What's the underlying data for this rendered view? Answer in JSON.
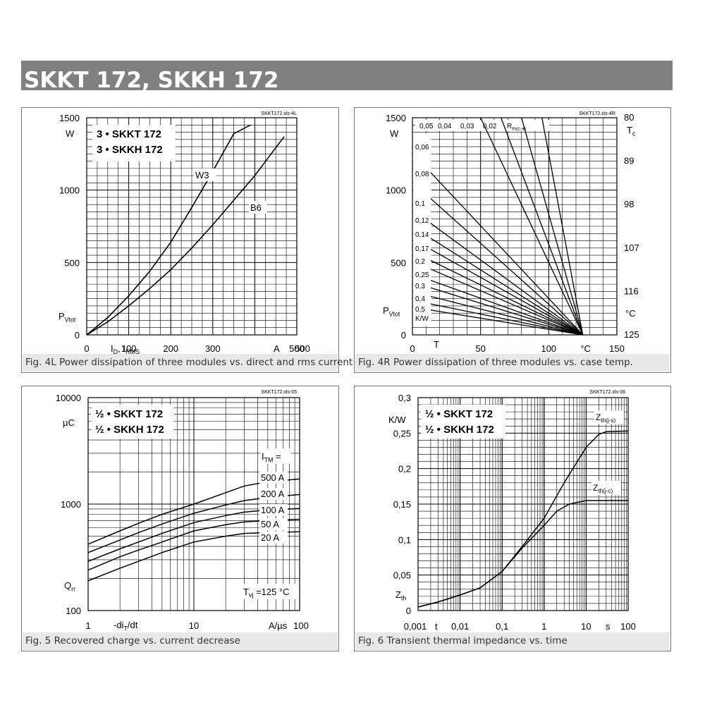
{
  "page_title": "SKKT 172, SKKH 172",
  "chart_data": [
    {
      "id": "fig4L",
      "type": "line",
      "file_ref": "SKKT172.xls-4L",
      "caption": "Fig. 4L Power dissipation of three modules vs. direct and rms current",
      "legend": [
        "3 • SKKT 172",
        "3 • SKKH 172"
      ],
      "xlabel": "I_D, I_RMS",
      "xunit": "A",
      "ylabel": "P_Vtot",
      "yunit": "W",
      "xlim": [
        0,
        500
      ],
      "ylim": [
        0,
        1500
      ],
      "xticks": [
        "0",
        "100",
        "200",
        "300",
        "400",
        "500"
      ],
      "yticks": [
        "0",
        "500",
        "1000",
        "1500"
      ],
      "series": [
        {
          "name": "W3",
          "x": [
            0,
            50,
            100,
            150,
            200,
            250,
            300,
            350,
            390
          ],
          "y": [
            0,
            120,
            270,
            440,
            640,
            880,
            1130,
            1390,
            1450
          ]
        },
        {
          "name": "B6",
          "x": [
            0,
            50,
            100,
            150,
            200,
            250,
            300,
            350,
            400,
            470
          ],
          "y": [
            0,
            90,
            200,
            320,
            450,
            600,
            760,
            930,
            1100,
            1370
          ]
        }
      ]
    },
    {
      "id": "fig4R",
      "type": "line",
      "file_ref": "SKKT172.xls-4R",
      "caption": "Fig. 4R Power dissipation of three modules vs. case temp.",
      "xlabel": "T",
      "xunit": "°C",
      "ylabel": "P_Vtot",
      "yunit": "W",
      "rth_label": "R_th(c-a)",
      "rth_unit": "K/W",
      "xlim": [
        0,
        150
      ],
      "ylim": [
        0,
        1500
      ],
      "xticks": [
        "0",
        "50",
        "100",
        "150"
      ],
      "yticks": [
        "0",
        "500",
        "1000",
        "1500"
      ],
      "right_axis_label": "T_c",
      "right_axis_unit": "°C",
      "right_ticks": [
        "80",
        "89",
        "98",
        "107",
        "116",
        "125"
      ],
      "convergence_point": [
        125,
        0
      ],
      "series": [
        {
          "name": "0,05",
          "y_at_T0": 2500
        },
        {
          "name": "0,04",
          "y_at_T0": 3125
        },
        {
          "name": "0,03",
          "y_at_T0": 4167
        },
        {
          "name": "0,02",
          "y_at_T0": 6250
        },
        {
          "name": "0,06",
          "y_at_T0": 1310
        },
        {
          "name": "0,08",
          "y_at_T0": 1100
        },
        {
          "name": "0,1",
          "y_at_T0": 900
        },
        {
          "name": "0,12",
          "y_at_T0": 780
        },
        {
          "name": "0,14",
          "y_at_T0": 690
        },
        {
          "name": "0,17",
          "y_at_T0": 600
        },
        {
          "name": "0,2",
          "y_at_T0": 530
        },
        {
          "name": "0,25",
          "y_at_T0": 440
        },
        {
          "name": "0,3",
          "y_at_T0": 380
        },
        {
          "name": "0,4",
          "y_at_T0": 310
        },
        {
          "name": "0,5",
          "y_at_T0": 250
        },
        {
          "name": "",
          "y_at_T0": 200
        }
      ]
    },
    {
      "id": "fig5",
      "type": "line",
      "file_ref": "SKKT172.xls-05",
      "caption": "Fig. 5 Recovered charge vs. current decrease",
      "legend": [
        "½ • SKKT 172",
        "½ • SKKH 172"
      ],
      "xlabel": "-di_T/dt",
      "xunit": "A/µs",
      "ylabel": "Q_rr",
      "yunit": "µC",
      "xscale": "log",
      "yscale": "log",
      "xlim": [
        1,
        100
      ],
      "ylim": [
        100,
        10000
      ],
      "xticks": [
        "1",
        "10",
        "100"
      ],
      "yticks": [
        "100",
        "1000",
        "10000"
      ],
      "series_title": "I_TM =",
      "condition": "T_vj = 125 °C",
      "x": [
        1,
        2,
        3,
        5,
        10,
        20,
        30,
        50,
        100
      ],
      "series": [
        {
          "name": "500 A",
          "values": [
            420,
            560,
            660,
            800,
            1000,
            1280,
            1480,
            1620,
            1720
          ]
        },
        {
          "name": "200 A",
          "values": [
            350,
            460,
            540,
            650,
            820,
            980,
            1080,
            1150,
            1230
          ]
        },
        {
          "name": "100 A",
          "values": [
            290,
            380,
            440,
            530,
            670,
            780,
            840,
            880,
            910
          ]
        },
        {
          "name": "50 A",
          "values": [
            240,
            320,
            370,
            440,
            560,
            640,
            680,
            700,
            720
          ]
        },
        {
          "name": "20 A",
          "values": [
            190,
            250,
            290,
            350,
            440,
            500,
            530,
            540,
            550
          ]
        }
      ]
    },
    {
      "id": "fig6",
      "type": "line",
      "file_ref": "SKKT172.xls-06",
      "caption": "Fig. 6 Transient thermal impedance vs. time",
      "legend": [
        "½ • SKKT 172",
        "½ • SKKH 172"
      ],
      "xlabel": "t",
      "xunit": "s",
      "ylabel": "Z_th",
      "yunit": "K/W",
      "xscale": "log",
      "xlim": [
        0.001,
        100
      ],
      "ylim": [
        0,
        0.3
      ],
      "xticks": [
        "0,001",
        "0,01",
        "0,1",
        "1",
        "10",
        "100"
      ],
      "yticks": [
        "0",
        "0,05",
        "0,1",
        "0,15",
        "0,2",
        "0,25",
        "0,3"
      ],
      "series": [
        {
          "name": "Z_th(j-s)",
          "x": [
            0.001,
            0.003,
            0.01,
            0.03,
            0.1,
            0.3,
            1,
            3,
            10,
            20,
            30,
            100
          ],
          "y": [
            0.005,
            0.012,
            0.022,
            0.032,
            0.055,
            0.09,
            0.13,
            0.18,
            0.23,
            0.248,
            0.252,
            0.253
          ]
        },
        {
          "name": "Z_th(j-c)",
          "x": [
            0.001,
            0.003,
            0.01,
            0.03,
            0.1,
            0.3,
            1,
            2,
            4,
            10,
            100
          ],
          "y": [
            0.005,
            0.012,
            0.022,
            0.032,
            0.055,
            0.088,
            0.12,
            0.14,
            0.15,
            0.155,
            0.155
          ]
        }
      ]
    }
  ]
}
